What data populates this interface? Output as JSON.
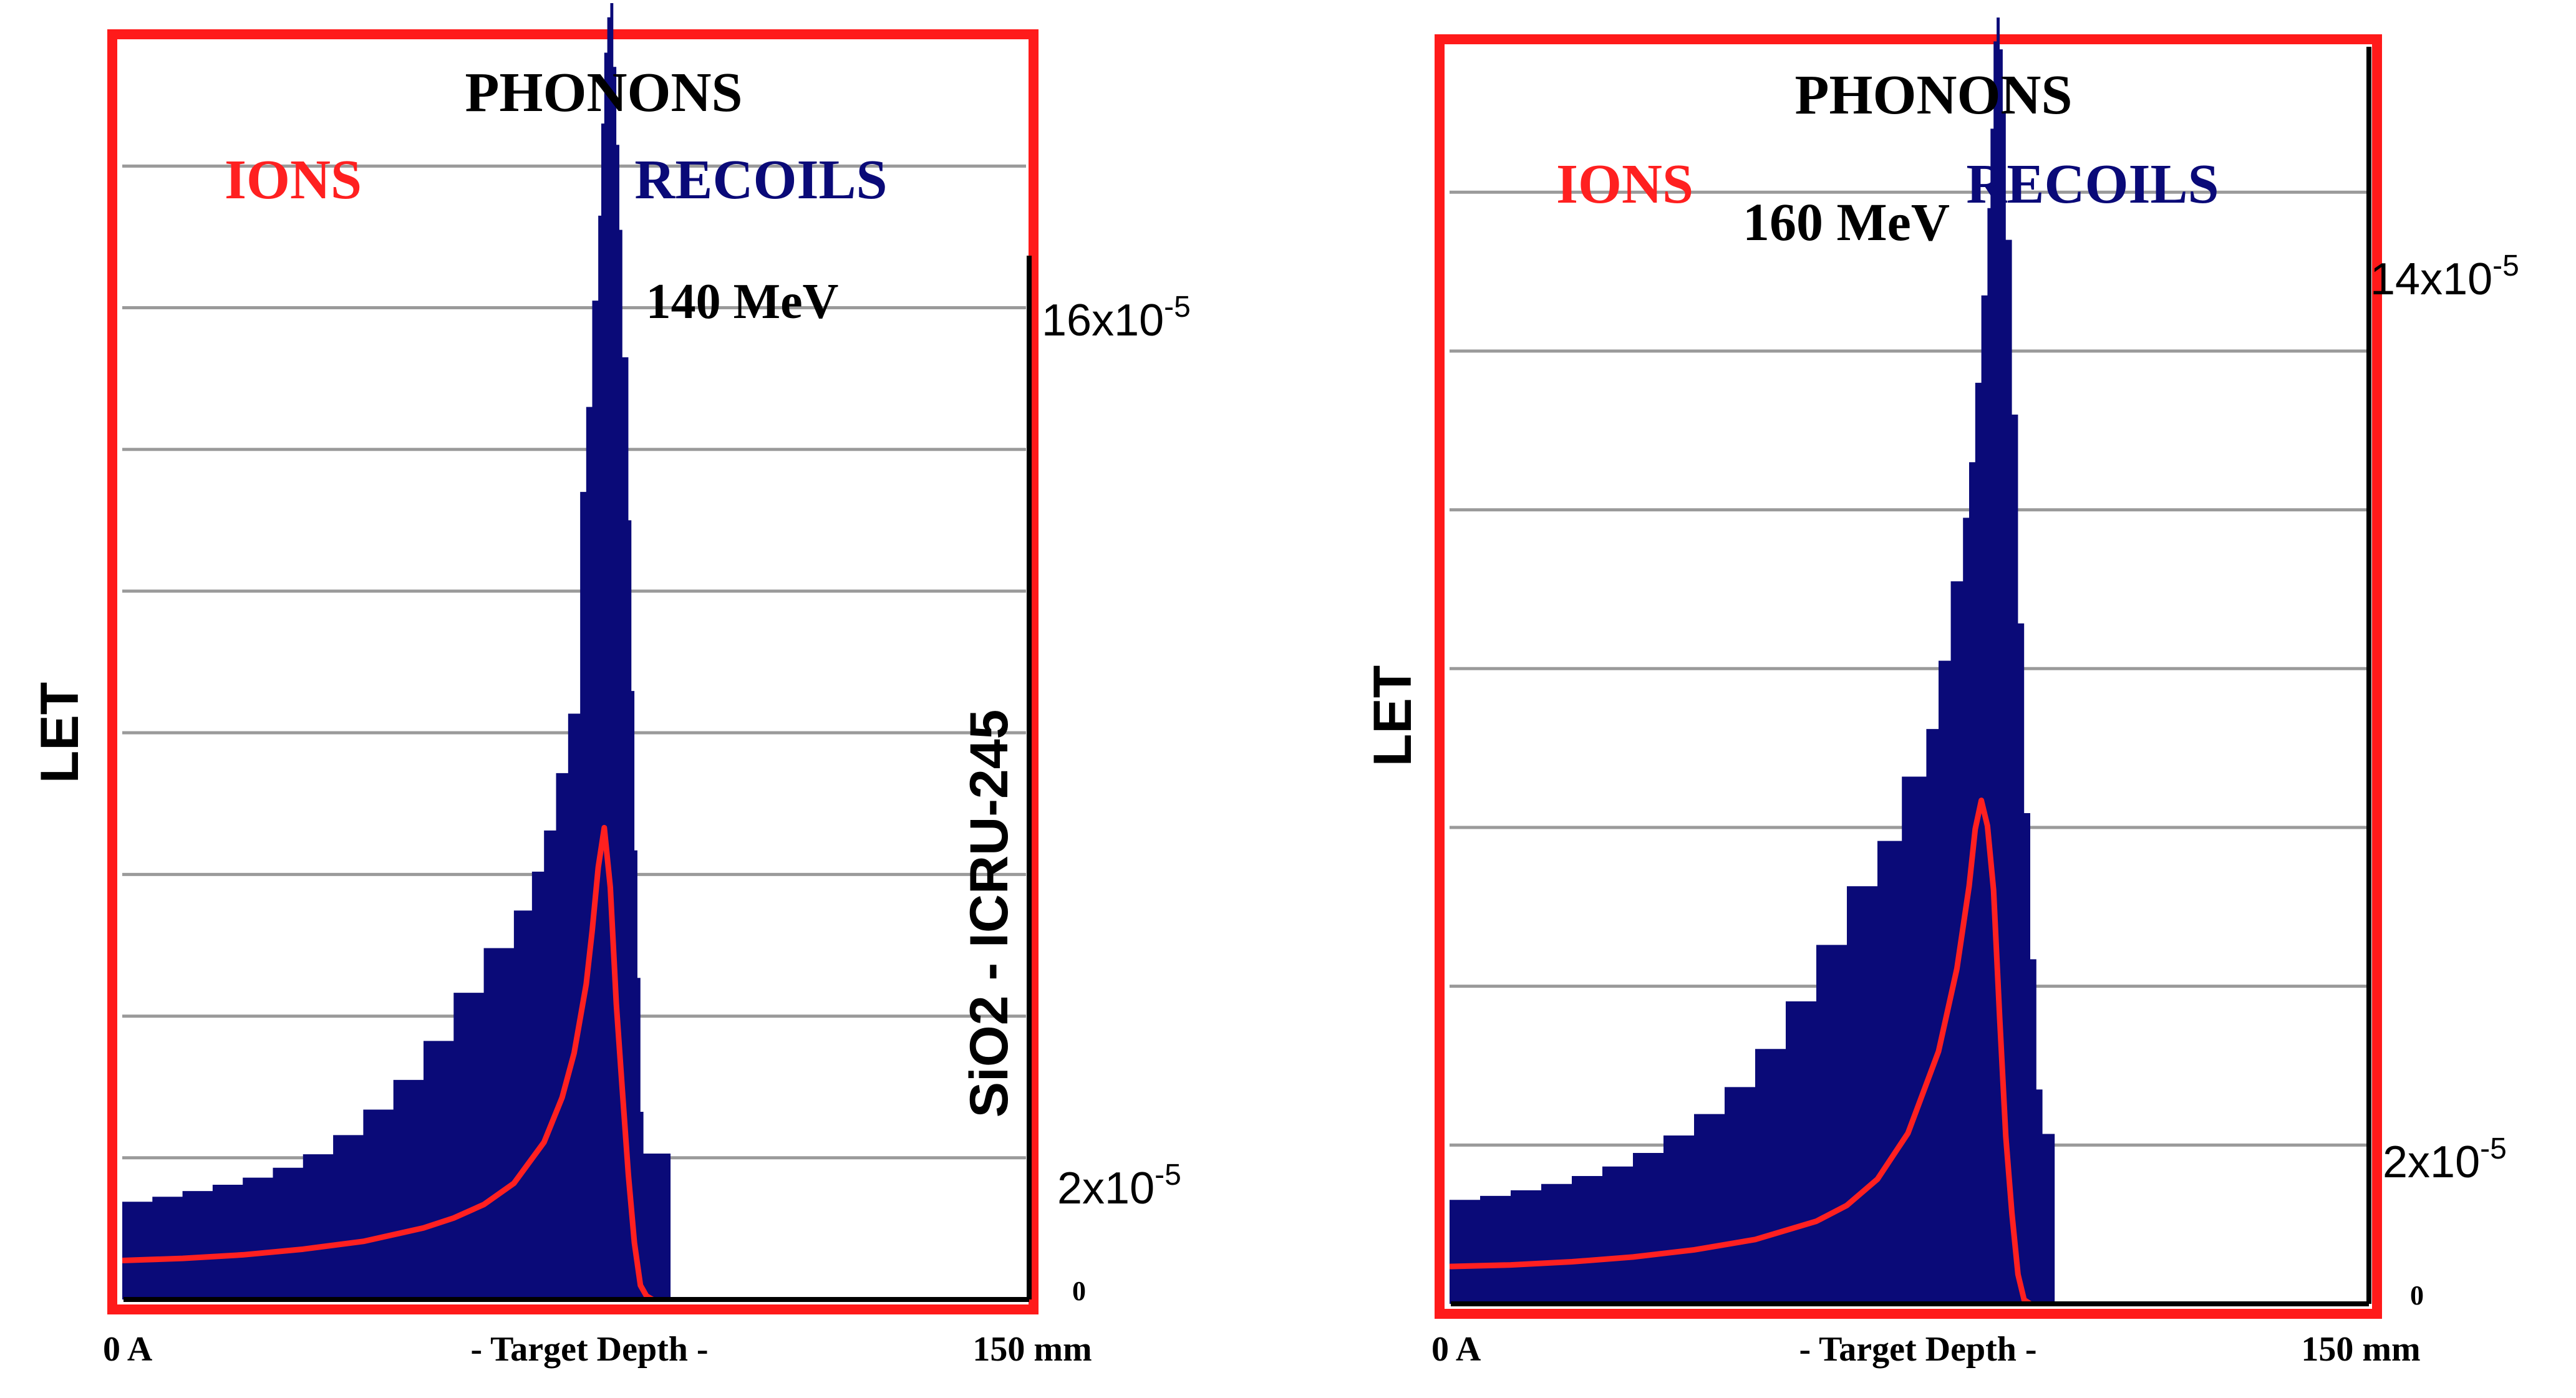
{
  "colors": {
    "frame": "#ff1a1a",
    "recoils": "#0a0a78",
    "ions": "#ff2020",
    "grid": "#9a9a9a",
    "axis": "#000000"
  },
  "chart_data": [
    {
      "type": "area",
      "title": "PHONONS",
      "legend_ions": "IONS",
      "legend_recoils": "RECOILS",
      "energy_label": "140 MeV",
      "ylabel": "LET",
      "side_label": "SiO2 - ICRU-245",
      "xlabel": "- Target Depth -",
      "x_start_label": "0 A",
      "x_end_label": "150 mm",
      "y_top_base": "16x10",
      "y_top_exp": "-5",
      "y_low_base": "2x10",
      "y_low_exp": "-5",
      "y_zero": "0",
      "xlim": [
        0,
        150
      ],
      "ylim": [
        0,
        0.000172
      ],
      "gridlines": [
        2e-05,
        4e-05,
        6e-05,
        8e-05,
        0.0001,
        0.00012,
        0.00014,
        0.00016
      ],
      "series": [
        {
          "name": "RECOILS",
          "x": [
            0,
            5,
            10,
            15,
            20,
            25,
            30,
            35,
            40,
            45,
            50,
            55,
            60,
            65,
            68,
            70,
            72,
            74,
            76,
            77,
            78,
            79,
            79.5,
            80,
            80.5,
            81,
            81.5,
            82,
            82.5,
            83,
            84,
            84.5,
            85,
            85.5,
            86,
            86.5,
            87,
            88,
            89,
            90,
            91
          ],
          "y": [
            1.38e-05,
            1.45e-05,
            1.53e-05,
            1.62e-05,
            1.72e-05,
            1.86e-05,
            2.05e-05,
            2.32e-05,
            2.68e-05,
            3.1e-05,
            3.65e-05,
            4.33e-05,
            4.96e-05,
            5.49e-05,
            6.04e-05,
            6.62e-05,
            7.43e-05,
            8.27e-05,
            0.000114,
            0.000126,
            0.000141,
            0.000153,
            0.000166,
            0.000176,
            0.000181,
            0.000183,
            0.000174,
            0.000163,
            0.000151,
            0.000133,
            0.00011,
            8.59e-05,
            6.34e-05,
            4.54e-05,
            2.65e-05,
            2.06e-05,
            2.06e-05,
            2.06e-05,
            2.06e-05,
            2.06e-05,
            0
          ]
        },
        {
          "name": "IONS",
          "x": [
            0,
            10,
            20,
            30,
            40,
            50,
            55,
            60,
            65,
            70,
            73,
            75,
            77,
            78,
            79,
            80,
            81,
            82,
            83,
            84,
            85,
            86,
            87,
            88
          ],
          "y": [
            5.5e-06,
            5.8e-06,
            6.3e-06,
            7.1e-06,
            8.2e-06,
            1.01e-05,
            1.15e-05,
            1.34e-05,
            1.64e-05,
            2.22e-05,
            2.85e-05,
            3.48e-05,
            4.45e-05,
            5.21e-05,
            6.1e-05,
            6.66e-05,
            5.82e-05,
            4.17e-05,
            2.95e-05,
            1.76e-05,
            8e-06,
            2e-06,
            5e-07,
            0
          ]
        }
      ]
    },
    {
      "type": "area",
      "title": "PHONONS",
      "legend_ions": "IONS",
      "legend_recoils": "RECOILS",
      "energy_label": "160 MeV",
      "ylabel": "LET",
      "xlabel": "- Target Depth -",
      "x_start_label": "0 A",
      "x_end_label": "150 mm",
      "y_top_base": "14x10",
      "y_top_exp": "-5",
      "y_low_base": "2x10",
      "y_low_exp": "-5",
      "y_zero": "0",
      "xlim": [
        0,
        150
      ],
      "ylim": [
        0,
        0.000154
      ],
      "gridlines": [
        2e-05,
        4e-05,
        6e-05,
        8e-05,
        0.0001,
        0.00012,
        0.00014
      ],
      "series": [
        {
          "name": "RECOILS",
          "x": [
            0,
            5,
            10,
            15,
            20,
            25,
            30,
            35,
            40,
            45,
            50,
            55,
            60,
            65,
            70,
            74,
            78,
            80,
            82,
            84,
            85,
            86,
            87,
            88,
            88.5,
            89,
            89.5,
            90,
            90.5,
            91,
            92,
            93,
            94,
            95,
            96,
            97,
            98,
            99
          ],
          "y": [
            1.31e-05,
            1.36e-05,
            1.43e-05,
            1.51e-05,
            1.61e-05,
            1.73e-05,
            1.9e-05,
            2.12e-05,
            2.39e-05,
            2.73e-05,
            3.21e-05,
            3.81e-05,
            4.52e-05,
            5.26e-05,
            5.83e-05,
            6.64e-05,
            7.24e-05,
            8.1e-05,
            9.1e-05,
            9.9e-05,
            0.000106,
            0.000116,
            0.000127,
            0.000138,
            0.000148,
            0.000159,
            0.000162,
            0.000158,
            0.00015,
            0.000134,
            0.000112,
            8.57e-05,
            6.18e-05,
            4.34e-05,
            2.7e-05,
            2.14e-05,
            2.14e-05,
            0
          ]
        },
        {
          "name": "IONS",
          "x": [
            0,
            10,
            20,
            30,
            40,
            50,
            60,
            65,
            70,
            75,
            80,
            83,
            85,
            86,
            87,
            88,
            89,
            90,
            91,
            92,
            93,
            94,
            95
          ],
          "y": [
            4.7e-06,
            4.9e-06,
            5.3e-06,
            5.9e-06,
            6.8e-06,
            8.1e-06,
            1.04e-05,
            1.24e-05,
            1.57e-05,
            2.15e-05,
            3.18e-05,
            4.22e-05,
            5.26e-05,
            5.98e-05,
            6.34e-05,
            6.02e-05,
            5.21e-05,
            3.6e-05,
            2.11e-05,
            1.14e-05,
            3.7e-06,
            5e-07,
            0
          ]
        }
      ]
    }
  ]
}
